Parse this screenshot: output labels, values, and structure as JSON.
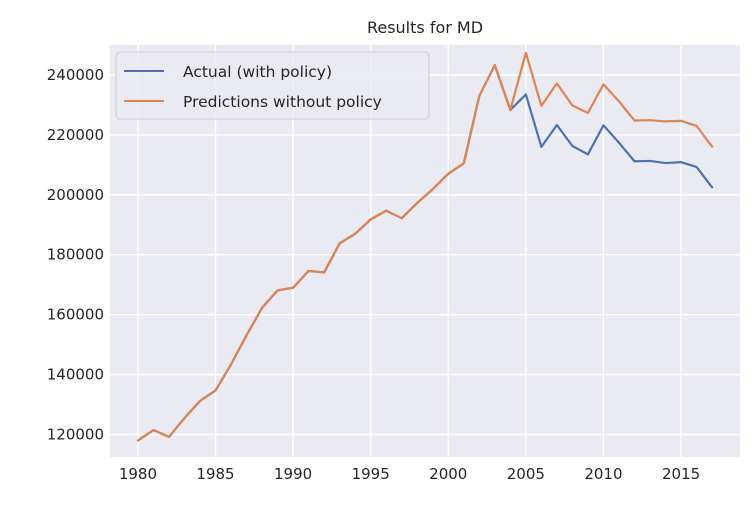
{
  "chart_data": {
    "type": "line",
    "title": "Results for MD",
    "xlabel": "",
    "ylabel": "",
    "x": [
      1980,
      1981,
      1982,
      1983,
      1984,
      1985,
      1986,
      1987,
      1988,
      1989,
      1990,
      1991,
      1992,
      1993,
      1994,
      1995,
      1996,
      1997,
      1998,
      1999,
      2000,
      2001,
      2002,
      2003,
      2004,
      2005,
      2006,
      2007,
      2008,
      2009,
      2010,
      2011,
      2012,
      2013,
      2014,
      2015,
      2016,
      2017
    ],
    "xlim": [
      1978.2,
      2018.8
    ],
    "ylim": [
      112500,
      250000
    ],
    "xticks": [
      1980,
      1985,
      1990,
      1995,
      2000,
      2005,
      2010,
      2015
    ],
    "yticks": [
      120000,
      140000,
      160000,
      180000,
      200000,
      220000,
      240000
    ],
    "grid": true,
    "legend_position": "upper-left",
    "series": [
      {
        "name": "Actual (with policy)",
        "color": "#4C72B0",
        "values": [
          118000,
          121500,
          119200,
          125500,
          131200,
          134700,
          143400,
          153100,
          162300,
          168100,
          169000,
          174600,
          174100,
          183800,
          187000,
          191800,
          194700,
          192200,
          197300,
          201900,
          207000,
          210500,
          233000,
          243300,
          228300,
          233500,
          216000,
          223300,
          216300,
          213500,
          223200,
          217400,
          211200,
          211300,
          210600,
          210900,
          209300,
          202500
        ]
      },
      {
        "name": "Predictions without policy",
        "color": "#DD8452",
        "values": [
          118000,
          121500,
          119200,
          125500,
          131200,
          134700,
          143400,
          153100,
          162300,
          168100,
          169000,
          174600,
          174100,
          183800,
          187000,
          191800,
          194700,
          192200,
          197300,
          201900,
          207000,
          210500,
          233000,
          243300,
          228300,
          247400,
          229700,
          237200,
          229800,
          227300,
          236900,
          231200,
          224800,
          224900,
          224500,
          224700,
          223000,
          216100
        ]
      }
    ]
  }
}
